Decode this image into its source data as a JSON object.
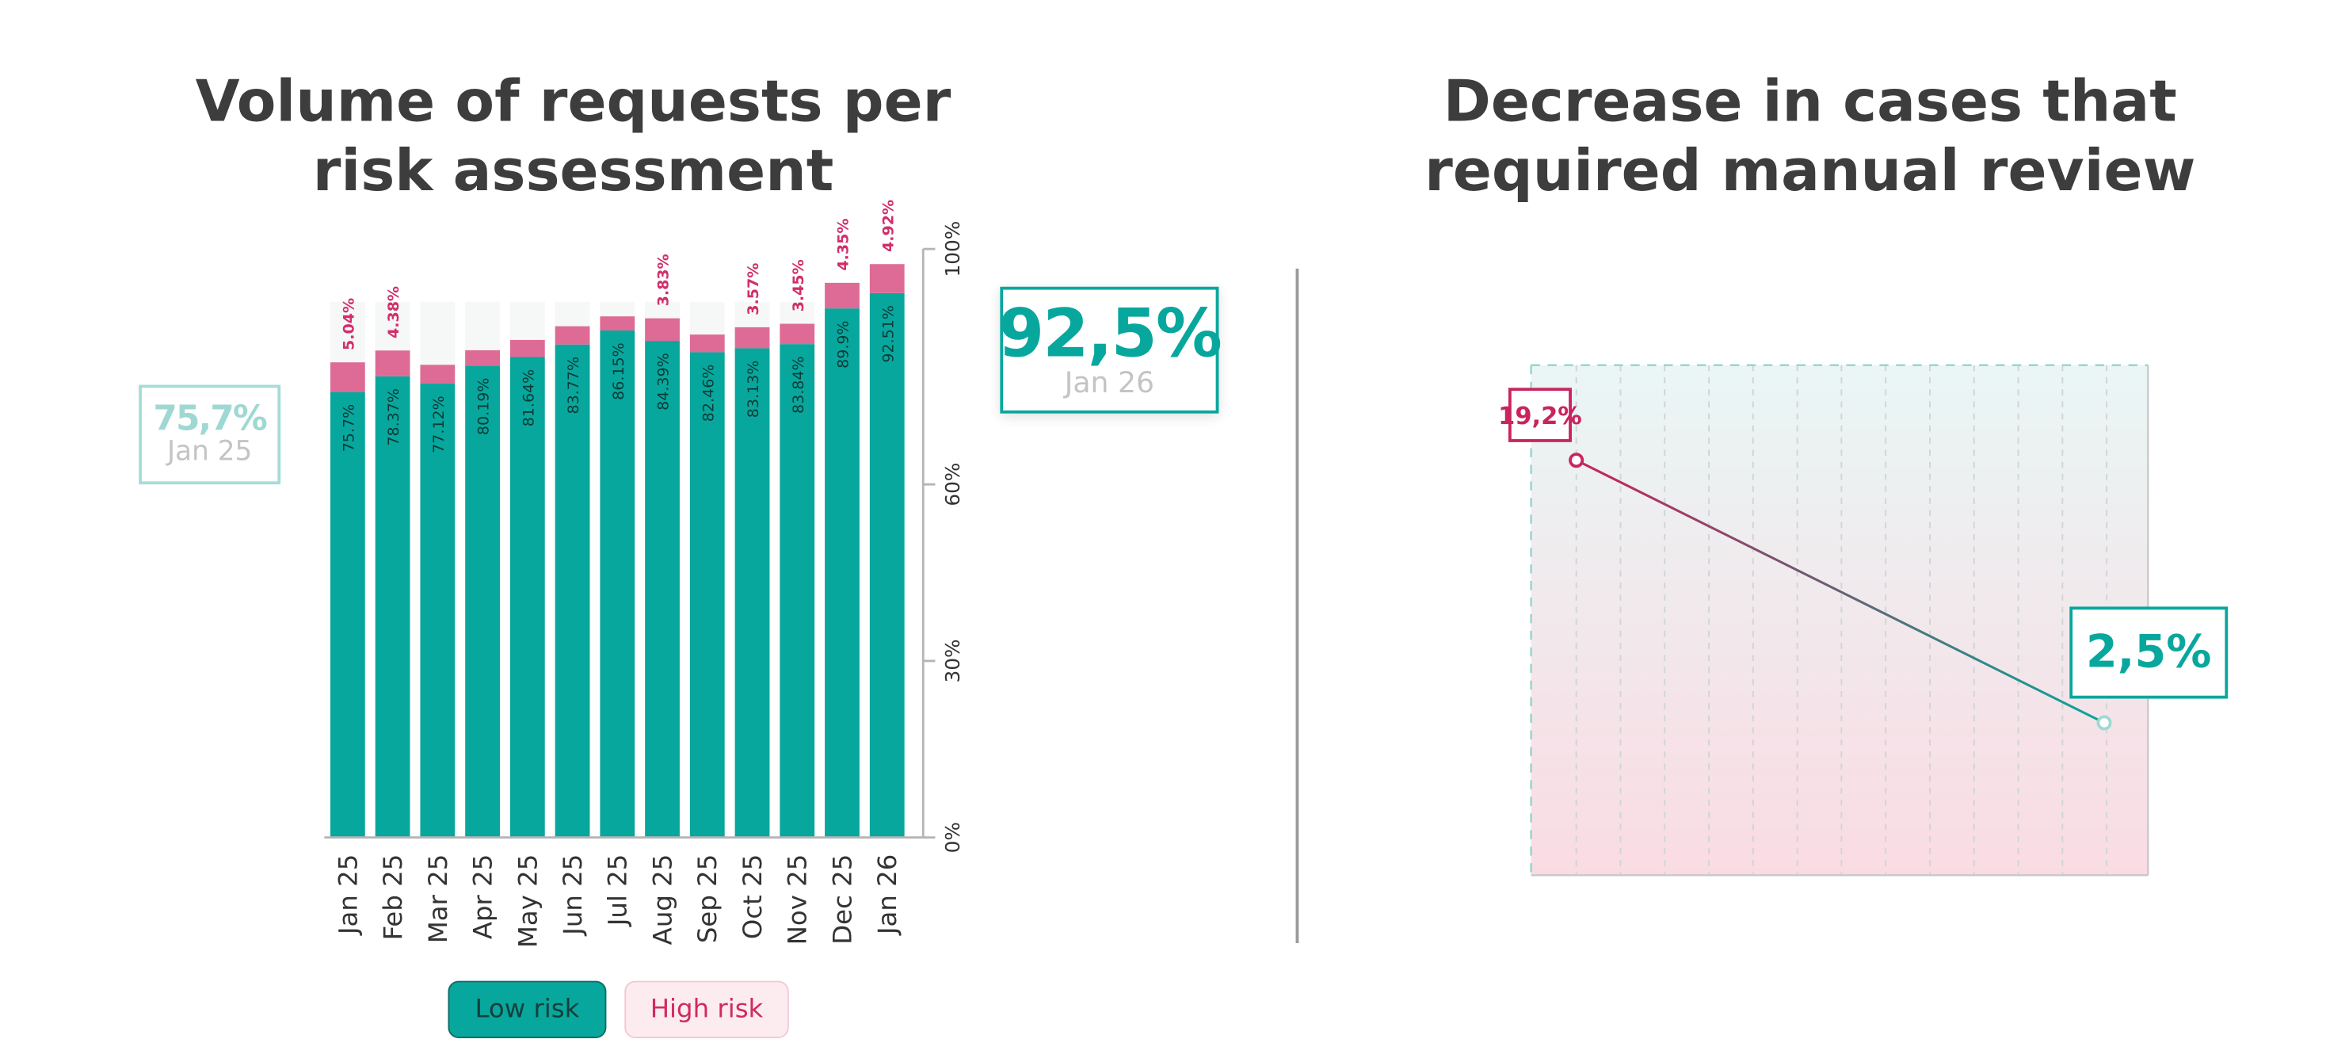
{
  "chart_data": [
    {
      "type": "bar",
      "stacked": true,
      "title": "Volume of requests per risk assessment",
      "categories": [
        "Jan 25",
        "Feb 25",
        "Mar 25",
        "Apr 25",
        "May 25",
        "Jun 25",
        "Jul 25",
        "Aug 25",
        "Sep 25",
        "Oct 25",
        "Nov 25",
        "Dec 25",
        "Jan 26"
      ],
      "series": [
        {
          "name": "Low risk",
          "color": "#08a79d",
          "values": [
            75.7,
            78.37,
            77.12,
            80.19,
            81.64,
            83.77,
            86.15,
            84.39,
            82.46,
            83.13,
            83.84,
            89.9,
            92.51
          ],
          "labels": [
            "75.7%",
            "78.37%",
            "77.12%",
            "80.19%",
            "81.64%",
            "83.77%",
            "86.15%",
            "84.39%",
            "82.46%",
            "83.13%",
            "83.84%",
            "89.9%",
            "92.51%"
          ]
        },
        {
          "name": "High risk",
          "color": "#de6b95",
          "values": [
            5.04,
            4.38,
            3.2,
            2.6,
            2.9,
            3.1,
            2.4,
            3.83,
            3.0,
            3.57,
            3.45,
            4.35,
            4.92
          ],
          "labels": [
            "5.04%",
            "4.38%",
            "",
            "",
            "",
            "",
            "",
            "3.83%",
            "",
            "3.57%",
            "3.45%",
            "4.35%",
            "4.92%"
          ]
        }
      ],
      "yticks": [
        "0%",
        "30%",
        "60%",
        "100%"
      ],
      "ylim": [
        0,
        100
      ],
      "axis_side": "right",
      "legend": "bottom",
      "callouts": {
        "start": {
          "value": "75,7%",
          "label": "Jan 25"
        },
        "end": {
          "value": "92,5%",
          "label": "Jan 26"
        }
      }
    },
    {
      "type": "line",
      "title": "Decrease in cases that required manual review",
      "x": [
        0,
        12
      ],
      "y": [
        19.2,
        2.5
      ],
      "point_labels": [
        "19,2%",
        "2,5%"
      ],
      "colors": {
        "start": "#c9245e",
        "end": "#08a79d"
      }
    }
  ],
  "legend_items": [
    {
      "label": "Low risk"
    },
    {
      "label": "High risk"
    }
  ],
  "titles": {
    "left": [
      "Volume of requests per",
      "risk assessment"
    ],
    "right": [
      "Decrease in cases that",
      "required manual review"
    ]
  }
}
